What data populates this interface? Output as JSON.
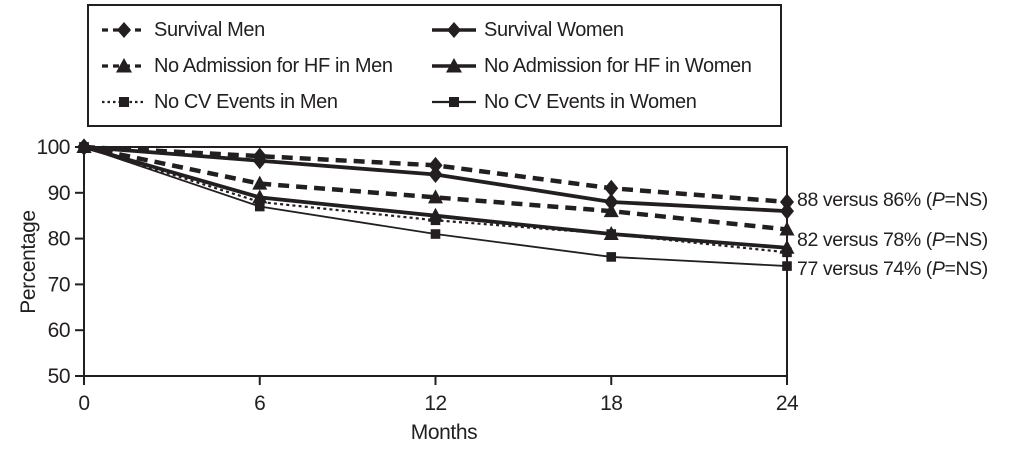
{
  "figure": {
    "annotations": [
      {
        "prefix": "88 versus 86% (",
        "italic": "P",
        "suffix": "=NS)"
      },
      {
        "prefix": "82 versus 78% (",
        "italic": "P",
        "suffix": "=NS)"
      },
      {
        "prefix": "77 versus 74% (",
        "italic": "P",
        "suffix": "=NS)"
      }
    ]
  },
  "chart_data": {
    "type": "line",
    "title": "",
    "xlabel": "Months",
    "ylabel": "Percentage",
    "x": [
      0,
      6,
      12,
      18,
      24
    ],
    "x_ticks": [
      "0",
      "6",
      "12",
      "18",
      "24"
    ],
    "y_ticks": [
      "100",
      "90",
      "80",
      "70",
      "60",
      "50"
    ],
    "xlim": [
      0,
      24
    ],
    "ylim": [
      50,
      100
    ],
    "grid": false,
    "legend_position": "top",
    "line_color": "#231f20",
    "series": [
      {
        "name": "Survival Men",
        "marker": "diamond",
        "line": "dashed",
        "stroke_width": 4.5,
        "values": [
          100,
          98,
          96,
          91,
          88
        ]
      },
      {
        "name": "Survival Women",
        "marker": "diamond",
        "line": "solid",
        "stroke_width": 3.8,
        "values": [
          100,
          97,
          94,
          88,
          86
        ]
      },
      {
        "name": "No Admission for HF in Men",
        "marker": "triangle",
        "line": "dashed",
        "stroke_width": 4.5,
        "values": [
          100,
          92,
          89,
          86,
          82
        ]
      },
      {
        "name": "No Admission for HF in Women",
        "marker": "triangle",
        "line": "solid",
        "stroke_width": 3.8,
        "values": [
          100,
          89,
          85,
          81,
          78
        ]
      },
      {
        "name": "No CV Events in Men",
        "marker": "square",
        "line": "dotted",
        "stroke_width": 2.2,
        "values": [
          100,
          88,
          84,
          81,
          77
        ]
      },
      {
        "name": "No CV Events in Women",
        "marker": "square",
        "line": "solid",
        "stroke_width": 1.8,
        "values": [
          100,
          87,
          81,
          76,
          74
        ]
      }
    ],
    "final_comparisons": [
      {
        "men": 88,
        "women": 86,
        "p": "NS"
      },
      {
        "men": 82,
        "women": 78,
        "p": "NS"
      },
      {
        "men": 77,
        "women": 74,
        "p": "NS"
      }
    ]
  }
}
